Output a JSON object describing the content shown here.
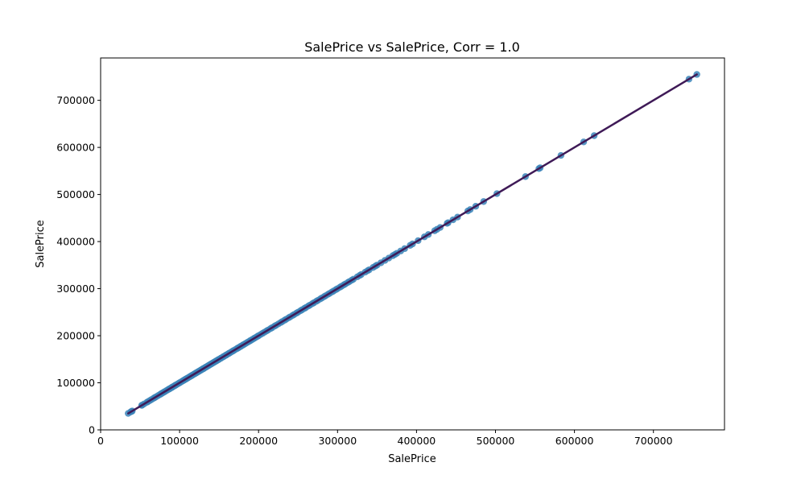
{
  "chart_data": {
    "type": "scatter",
    "title": "SalePrice vs SalePrice, Corr = 1.0",
    "xlabel": "SalePrice",
    "ylabel": "SalePrice",
    "xlim": [
      0,
      790000
    ],
    "ylim": [
      0,
      790000
    ],
    "xticks": [
      0,
      100000,
      200000,
      300000,
      400000,
      500000,
      600000,
      700000
    ],
    "yticks": [
      0,
      100000,
      200000,
      300000,
      400000,
      500000,
      600000,
      700000
    ],
    "xtick_labels": [
      "0",
      "100000",
      "200000",
      "300000",
      "400000",
      "500000",
      "600000",
      "700000"
    ],
    "ytick_labels": [
      "0",
      "100000",
      "200000",
      "300000",
      "400000",
      "500000",
      "600000",
      "700000"
    ],
    "grid": false,
    "colors": {
      "points": "#3b84b8",
      "fit_line": "#3f1a57"
    },
    "fit_line": {
      "x": [
        34900,
        755000
      ],
      "y": [
        34900,
        755000
      ]
    },
    "points": {
      "x": [
        34900,
        37900,
        39300,
        40000,
        52000,
        52500,
        55000,
        58500,
        60000,
        62383,
        64500,
        67000,
        68400,
        70000,
        72500,
        75000,
        76500,
        78000,
        79900,
        81000,
        83000,
        84500,
        86000,
        87000,
        88000,
        89500,
        90000,
        91000,
        92000,
        93500,
        94500,
        95000,
        96500,
        98000,
        99900,
        100000,
        102000,
        104000,
        105000,
        106000,
        107500,
        108000,
        109500,
        110000,
        112000,
        113000,
        114500,
        115000,
        116000,
        117000,
        118500,
        119000,
        120000,
        121000,
        122000,
        123000,
        124000,
        125000,
        126000,
        127000,
        128000,
        129000,
        129900,
        130000,
        131000,
        132000,
        133000,
        134000,
        135000,
        136000,
        137000,
        138000,
        139000,
        140000,
        141000,
        142000,
        143000,
        144000,
        145000,
        146000,
        147000,
        148000,
        149000,
        150000,
        152000,
        153000,
        155000,
        156000,
        158000,
        159000,
        160000,
        162000,
        163000,
        165000,
        167000,
        168000,
        170000,
        172500,
        174000,
        175000,
        177000,
        178000,
        180000,
        181000,
        183000,
        185000,
        187000,
        189000,
        190000,
        192000,
        194000,
        195000,
        197000,
        199000,
        200000,
        202500,
        205000,
        207500,
        210000,
        212000,
        215000,
        217000,
        220000,
        222000,
        225000,
        228000,
        230000,
        233000,
        235000,
        238000,
        240000,
        243000,
        245000,
        248000,
        250000,
        253000,
        255000,
        258000,
        260000,
        263000,
        265000,
        268000,
        270000,
        273000,
        275000,
        278000,
        280000,
        283000,
        285000,
        288000,
        290000,
        293000,
        295000,
        298000,
        300000,
        303000,
        305000,
        308000,
        310000,
        313000,
        315000,
        318000,
        320000,
        325000,
        328000,
        330000,
        335000,
        338000,
        340000,
        345000,
        348000,
        350000,
        355000,
        360000,
        365000,
        370000,
        372500,
        375000,
        380000,
        385000,
        392000,
        395000,
        402000,
        410000,
        415000,
        423000,
        426000,
        430000,
        438780,
        440000,
        446261,
        451950,
        465000,
        468000,
        475000,
        485000,
        501837,
        538000,
        555000,
        556581,
        582933,
        611657,
        625000,
        745000,
        755000
      ],
      "y": [
        34900,
        37900,
        39300,
        40000,
        52000,
        52500,
        55000,
        58500,
        60000,
        62383,
        64500,
        67000,
        68400,
        70000,
        72500,
        75000,
        76500,
        78000,
        79900,
        81000,
        83000,
        84500,
        86000,
        87000,
        88000,
        89500,
        90000,
        91000,
        92000,
        93500,
        94500,
        95000,
        96500,
        98000,
        99900,
        100000,
        102000,
        104000,
        105000,
        106000,
        107500,
        108000,
        109500,
        110000,
        112000,
        113000,
        114500,
        115000,
        116000,
        117000,
        118500,
        119000,
        120000,
        121000,
        122000,
        123000,
        124000,
        125000,
        126000,
        127000,
        128000,
        129000,
        129900,
        130000,
        131000,
        132000,
        133000,
        134000,
        135000,
        136000,
        137000,
        138000,
        139000,
        140000,
        141000,
        142000,
        143000,
        144000,
        145000,
        146000,
        147000,
        148000,
        149000,
        150000,
        152000,
        153000,
        155000,
        156000,
        158000,
        159000,
        160000,
        162000,
        163000,
        165000,
        167000,
        168000,
        170000,
        172500,
        174000,
        175000,
        177000,
        178000,
        180000,
        181000,
        183000,
        185000,
        187000,
        189000,
        190000,
        192000,
        194000,
        195000,
        197000,
        199000,
        200000,
        202500,
        205000,
        207500,
        210000,
        212000,
        215000,
        217000,
        220000,
        222000,
        225000,
        228000,
        230000,
        233000,
        235000,
        238000,
        240000,
        243000,
        245000,
        248000,
        250000,
        253000,
        255000,
        258000,
        260000,
        263000,
        265000,
        268000,
        270000,
        273000,
        275000,
        278000,
        280000,
        283000,
        285000,
        288000,
        290000,
        293000,
        295000,
        298000,
        300000,
        303000,
        305000,
        308000,
        310000,
        313000,
        315000,
        318000,
        320000,
        325000,
        328000,
        330000,
        335000,
        338000,
        340000,
        345000,
        348000,
        350000,
        355000,
        360000,
        365000,
        370000,
        372500,
        375000,
        380000,
        385000,
        392000,
        395000,
        402000,
        410000,
        415000,
        423000,
        426000,
        430000,
        438780,
        440000,
        446261,
        451950,
        465000,
        468000,
        475000,
        485000,
        501837,
        538000,
        555000,
        556581,
        582933,
        611657,
        625000,
        745000,
        755000
      ]
    }
  }
}
